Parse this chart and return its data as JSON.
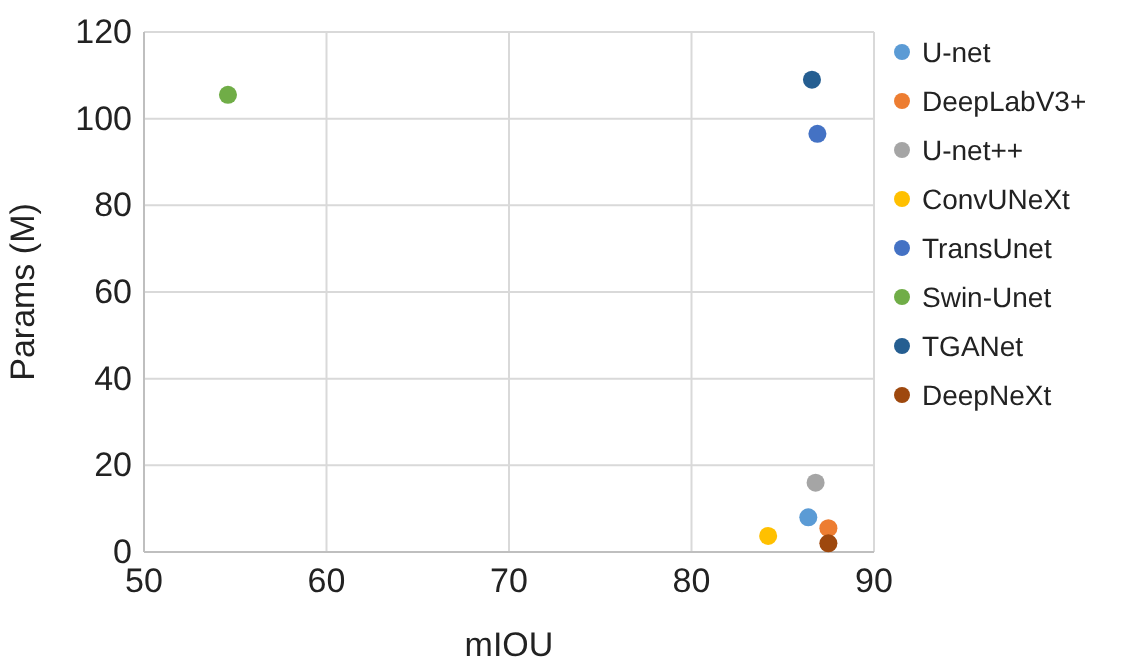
{
  "chart_data": {
    "type": "scatter",
    "xlabel": "mIOU",
    "ylabel": "Params (M)",
    "xlim": [
      50,
      90
    ],
    "xticks": [
      50,
      60,
      70,
      80,
      90
    ],
    "ylim": [
      0,
      120
    ],
    "yticks": [
      0,
      20,
      40,
      60,
      80,
      100,
      120
    ],
    "grid": true,
    "legend": "right",
    "marker": "circle",
    "series": [
      {
        "name": "U-net",
        "color": "#5b9bd5",
        "x": [
          86.4
        ],
        "values": [
          8
        ]
      },
      {
        "name": "DeepLabV3+",
        "color": "#ed7d31",
        "x": [
          87.5
        ],
        "values": [
          5.5
        ]
      },
      {
        "name": "U-net++",
        "color": "#a5a5a5",
        "x": [
          86.8
        ],
        "values": [
          16
        ]
      },
      {
        "name": "ConvUNeXt",
        "color": "#ffc000",
        "x": [
          84.2
        ],
        "values": [
          3.7
        ]
      },
      {
        "name": "TransUnet",
        "color": "#4472c4",
        "x": [
          86.9
        ],
        "values": [
          96.5
        ]
      },
      {
        "name": "Swin-Unet",
        "color": "#70ad47",
        "x": [
          54.6
        ],
        "values": [
          105.5
        ]
      },
      {
        "name": "TGANet",
        "color": "#255e91",
        "x": [
          86.6
        ],
        "values": [
          109
        ]
      },
      {
        "name": "DeepNeXt",
        "color": "#9e480e",
        "x": [
          87.5
        ],
        "values": [
          2
        ]
      }
    ]
  }
}
